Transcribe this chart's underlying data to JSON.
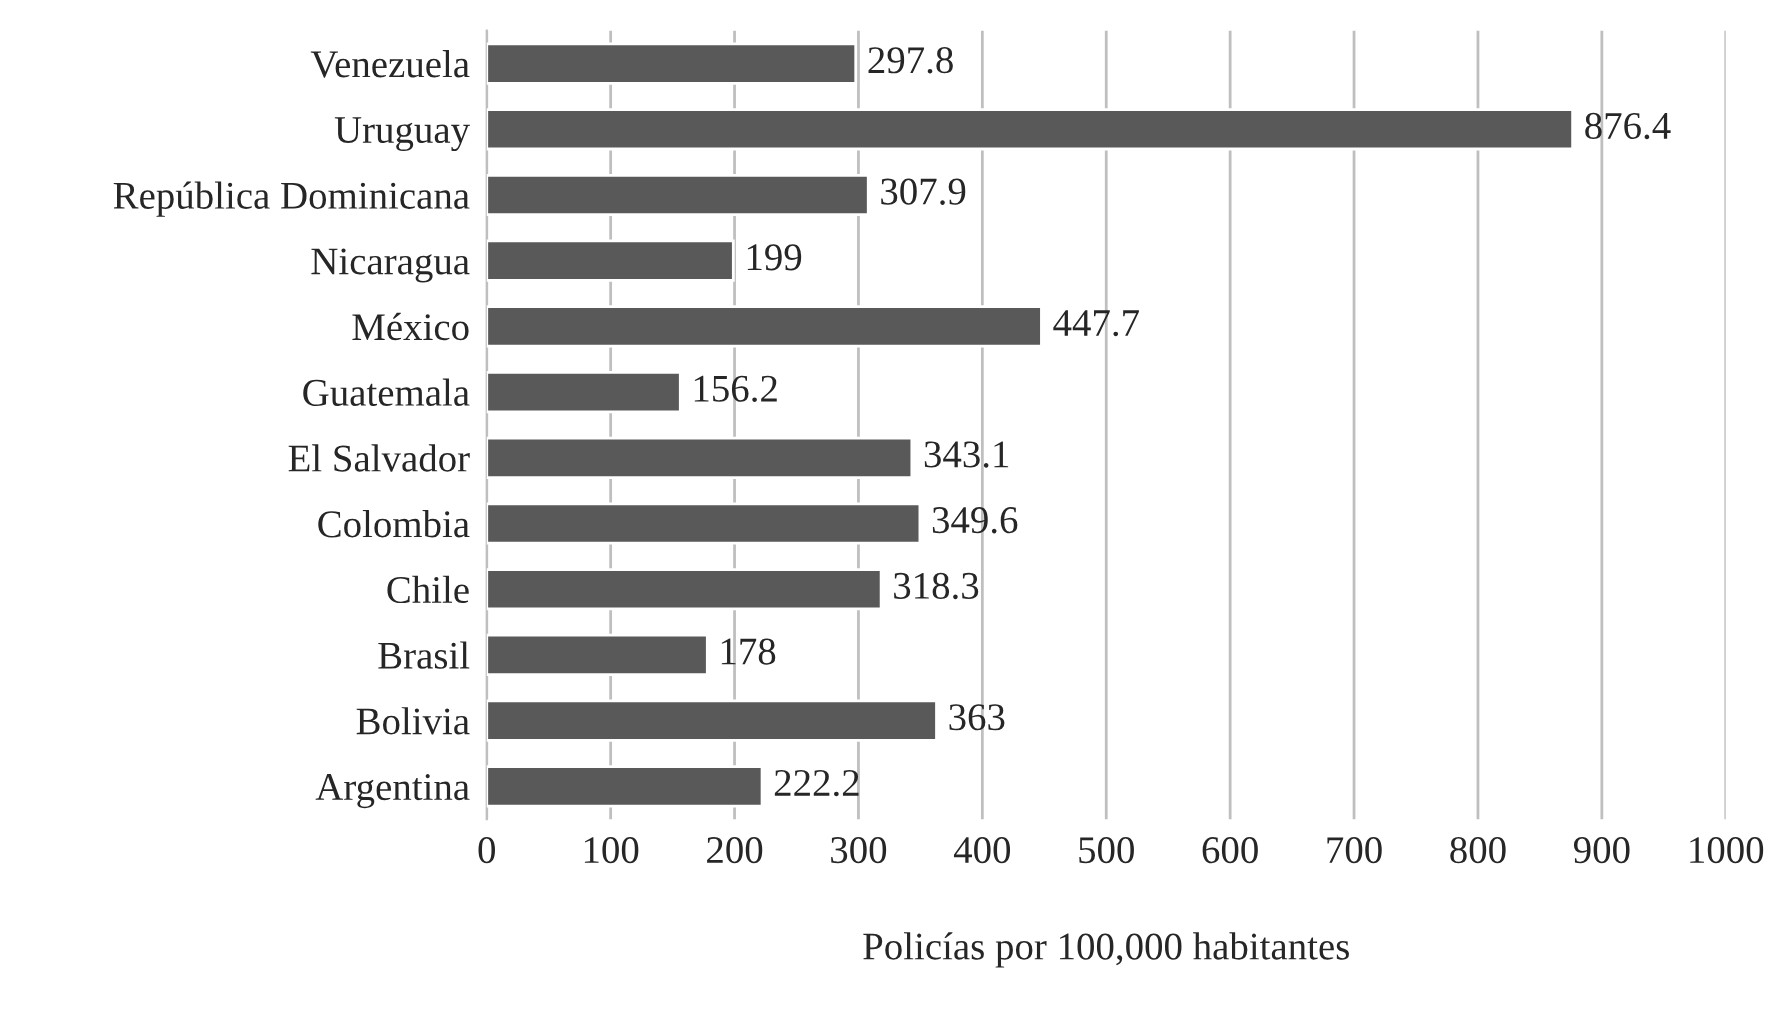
{
  "chart_data": {
    "type": "bar",
    "orientation": "horizontal",
    "xlabel": "Policías por 100,000 habitantes",
    "categories": [
      "Venezuela",
      "Uruguay",
      "República Dominicana",
      "Nicaragua",
      "México",
      "Guatemala",
      "El Salvador",
      "Colombia",
      "Chile",
      "Brasil",
      "Bolivia",
      "Argentina"
    ],
    "values": [
      297.8,
      876.4,
      307.9,
      199,
      447.7,
      156.2,
      343.1,
      349.6,
      318.3,
      178,
      363,
      222.2
    ],
    "color": "#595959",
    "xlim": [
      0,
      1000
    ],
    "xticks": [
      0,
      100,
      200,
      300,
      400,
      500,
      600,
      700,
      800,
      900,
      1000
    ],
    "grid": "x",
    "data_labels": true,
    "legend": false
  }
}
